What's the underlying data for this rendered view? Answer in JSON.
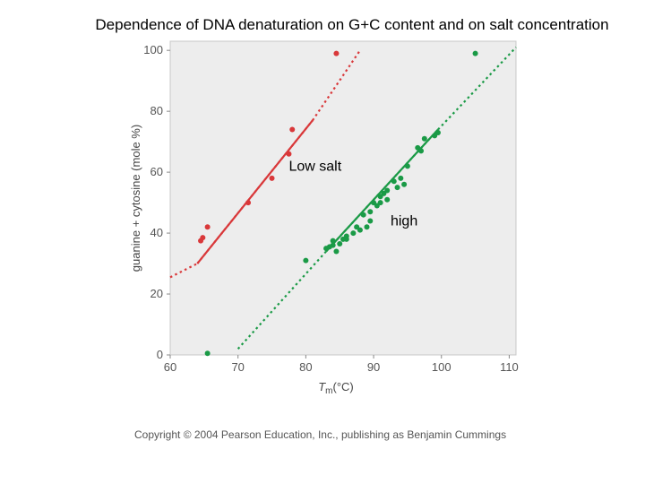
{
  "slide": {
    "title": "Dependence of DNA denaturation on G+C content and on salt concentration",
    "copyright": "Copyright © 2004 Pearson Education, Inc., publishing as Benjamin Cummings"
  },
  "chart_data": {
    "type": "scatter",
    "xlabel_main": "T",
    "xlabel_sub": "m",
    "xlabel_unit": "(°C)",
    "ylabel": "guanine + cytosine (mole %)",
    "xlim": [
      60,
      111
    ],
    "ylim": [
      0,
      103
    ],
    "x_ticks": [
      60,
      70,
      80,
      90,
      100,
      110
    ],
    "y_ticks": [
      0,
      20,
      40,
      60,
      80,
      100
    ],
    "grid": false,
    "colors": {
      "low": "#d9383a",
      "high": "#1a9a46",
      "plot_bg": "#ededed",
      "frame": "#c8c8c8"
    },
    "annotations": [
      {
        "text": "Low salt",
        "x": 77.5,
        "y": 60.5
      },
      {
        "text": "high",
        "x": 92.5,
        "y": 42.5
      }
    ],
    "series": [
      {
        "key": "low",
        "points": [
          [
            64.5,
            37.5
          ],
          [
            64.8,
            38.5
          ],
          [
            65.5,
            42
          ],
          [
            71.5,
            50
          ],
          [
            75,
            58
          ],
          [
            77.5,
            66
          ],
          [
            78,
            74
          ],
          [
            84.5,
            99
          ]
        ],
        "fit_solid": [
          [
            64,
            30
          ],
          [
            81,
            77
          ]
        ],
        "fit_dotted": [
          [
            60,
            25.5
          ],
          [
            64,
            30
          ],
          [
            81,
            77
          ],
          [
            88,
            100
          ]
        ]
      },
      {
        "key": "high",
        "points": [
          [
            65.5,
            0.5
          ],
          [
            80,
            31
          ],
          [
            83,
            35
          ],
          [
            83.5,
            35.5
          ],
          [
            84,
            36
          ],
          [
            84,
            37.5
          ],
          [
            84.5,
            34
          ],
          [
            85,
            36.5
          ],
          [
            85.5,
            38
          ],
          [
            86,
            39
          ],
          [
            86,
            38
          ],
          [
            87,
            40
          ],
          [
            87.5,
            42
          ],
          [
            88,
            41
          ],
          [
            88.5,
            46
          ],
          [
            89,
            42
          ],
          [
            89.5,
            44
          ],
          [
            89.5,
            47
          ],
          [
            90,
            50
          ],
          [
            90.5,
            49
          ],
          [
            91,
            50
          ],
          [
            91,
            52
          ],
          [
            91.5,
            53
          ],
          [
            92,
            51
          ],
          [
            92,
            54
          ],
          [
            93,
            57
          ],
          [
            93.5,
            55
          ],
          [
            94,
            58
          ],
          [
            94.5,
            56
          ],
          [
            95,
            62
          ],
          [
            96.5,
            68
          ],
          [
            97,
            67
          ],
          [
            97.5,
            71
          ],
          [
            99,
            72
          ],
          [
            99.5,
            73
          ],
          [
            105,
            99
          ]
        ],
        "fit_solid": [
          [
            83,
            34
          ],
          [
            99.5,
            74
          ]
        ],
        "fit_dotted": [
          [
            70,
            2
          ],
          [
            83,
            34
          ],
          [
            99.5,
            74
          ],
          [
            111,
            101
          ]
        ]
      }
    ]
  }
}
